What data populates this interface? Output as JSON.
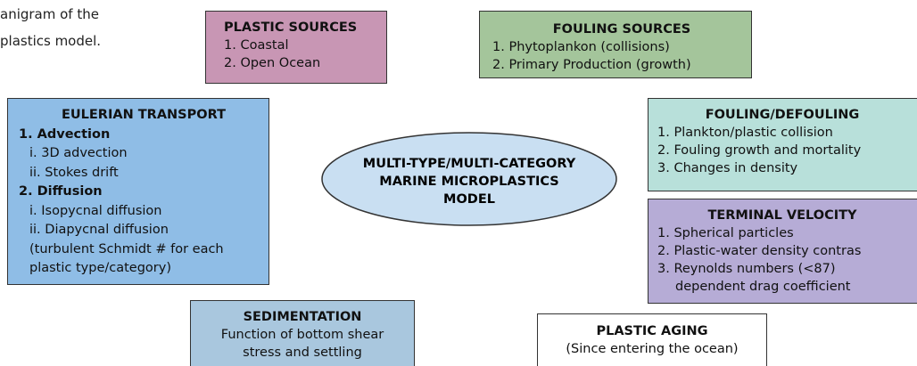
{
  "caption": [
    "anigram of the",
    "plastics model."
  ],
  "plastic_sources": {
    "title": "PLASTIC SOURCES",
    "lines": [
      "1. Coastal",
      "2. Open Ocean"
    ]
  },
  "fouling_sources": {
    "title": "FOULING SOURCES",
    "lines": [
      "1. Phytoplankon (collisions)",
      "2. Primary Production (growth)"
    ]
  },
  "eulerian_transport": {
    "title": "EULERIAN TRANSPORT",
    "lines": [
      "1. Advection",
      "i. 3D advection",
      "ii. Stokes drift",
      "2. Diffusion",
      "i. Isopycnal diffusion",
      "ii. Diapycnal diffusion",
      "(turbulent Schmidt # for each",
      "plastic type/category)"
    ]
  },
  "center": {
    "lines": [
      "MULTI-TYPE/MULTI-CATEGORY",
      "MARINE MICROPLASTICS",
      "MODEL"
    ]
  },
  "fouling_defouling": {
    "title": "FOULING/DEFOULING",
    "lines": [
      "1. Plankton/plastic collision",
      "2. Fouling growth and mortality",
      "3. Changes in density"
    ]
  },
  "terminal_velocity": {
    "title": "TERMINAL VELOCITY",
    "lines": [
      "1. Spherical particles",
      "2. Plastic-water density contras",
      "3. Reynolds numbers (<87)",
      "dependent drag coefficient"
    ]
  },
  "sedimentation": {
    "title": "SEDIMENTATION",
    "lines": [
      "Function of bottom shear",
      "stress and settling"
    ]
  },
  "plastic_aging": {
    "title": "PLASTIC AGING",
    "lines": [
      "(Since entering the ocean)"
    ]
  }
}
